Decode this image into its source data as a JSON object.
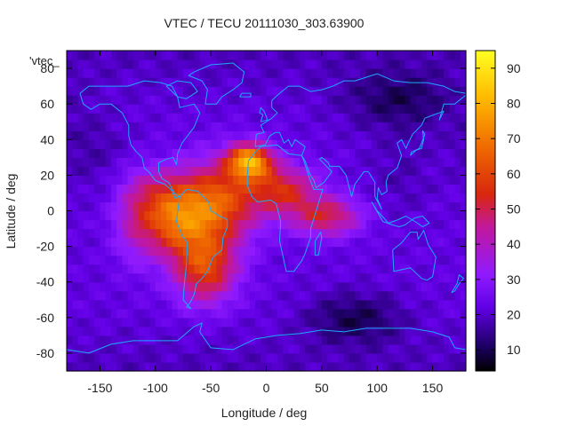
{
  "chart_data": {
    "type": "heatmap",
    "title": "VTEC / TECU 20111030_303.63900",
    "series_label": "'vtec_",
    "xlabel": "Longitude / deg",
    "ylabel": "Latitude / deg",
    "xlim": [
      -180,
      180
    ],
    "ylim": [
      -90,
      90
    ],
    "x_ticks": [
      -150,
      -100,
      -50,
      0,
      50,
      100,
      150
    ],
    "y_ticks": [
      -80,
      -60,
      -40,
      -20,
      0,
      20,
      40,
      60,
      80
    ],
    "colorbar": {
      "min": 4,
      "max": 95,
      "ticks": [
        10,
        20,
        30,
        40,
        50,
        60,
        70,
        80,
        90
      ]
    },
    "grid_resolution_deg": [
      5,
      5
    ],
    "enhancements": [
      {
        "lon": -15,
        "lat": 28,
        "sx": 14,
        "sy": 7,
        "amp": 52
      },
      {
        "lon": -45,
        "lat": 5,
        "sx": 26,
        "sy": 16,
        "amp": 40
      },
      {
        "lon": -85,
        "lat": -5,
        "sx": 22,
        "sy": 14,
        "amp": 36
      },
      {
        "lon": -55,
        "lat": -32,
        "sx": 20,
        "sy": 14,
        "amp": 36
      },
      {
        "lon": 15,
        "lat": 12,
        "sx": 22,
        "sy": 10,
        "amp": 30
      },
      {
        "lon": 55,
        "lat": -3,
        "sx": 22,
        "sy": 8,
        "amp": 28
      },
      {
        "lon": -120,
        "lat": -5,
        "sx": 14,
        "sy": 18,
        "amp": 12
      },
      {
        "lon": -100,
        "lat": 12,
        "sx": 18,
        "sy": 10,
        "amp": 10
      }
    ],
    "base_vtec": 22,
    "depletions": [
      {
        "lon": 120,
        "lat": 62,
        "sx": 35,
        "sy": 12,
        "amp": -11
      },
      {
        "lon": 80,
        "lat": -60,
        "sx": 30,
        "sy": 10,
        "amp": -12
      },
      {
        "lon": -160,
        "lat": 35,
        "sx": 25,
        "sy": 15,
        "amp": -5
      },
      {
        "lon": 120,
        "lat": 20,
        "sx": 20,
        "sy": 15,
        "amp": -4
      }
    ],
    "colormap": [
      {
        "v": 0.0,
        "color": "#000000"
      },
      {
        "v": 0.08,
        "color": "#1e0066"
      },
      {
        "v": 0.2,
        "color": "#6200e6"
      },
      {
        "v": 0.3,
        "color": "#8f1aff"
      },
      {
        "v": 0.45,
        "color": "#c2189b"
      },
      {
        "v": 0.55,
        "color": "#d8260f"
      },
      {
        "v": 0.7,
        "color": "#f06b00"
      },
      {
        "v": 0.85,
        "color": "#ffb800"
      },
      {
        "v": 1.0,
        "color": "#ffff22"
      }
    ],
    "coastline_color": "#1ea8ff",
    "continents": {
      "north_america": [
        [
          -168,
          66
        ],
        [
          -160,
          70
        ],
        [
          -140,
          70
        ],
        [
          -125,
          70
        ],
        [
          -110,
          73
        ],
        [
          -95,
          72
        ],
        [
          -85,
          70
        ],
        [
          -80,
          64
        ],
        [
          -78,
          58
        ],
        [
          -65,
          60
        ],
        [
          -60,
          55
        ],
        [
          -65,
          47
        ],
        [
          -70,
          43
        ],
        [
          -76,
          38
        ],
        [
          -80,
          32
        ],
        [
          -81,
          26
        ],
        [
          -84,
          30
        ],
        [
          -90,
          29
        ],
        [
          -97,
          27
        ],
        [
          -97,
          22
        ],
        [
          -94,
          18
        ],
        [
          -88,
          16
        ],
        [
          -83,
          10
        ],
        [
          -79,
          8
        ],
        [
          -82,
          7
        ],
        [
          -86,
          12
        ],
        [
          -92,
          15
        ],
        [
          -100,
          17
        ],
        [
          -106,
          22
        ],
        [
          -110,
          24
        ],
        [
          -112,
          30
        ],
        [
          -117,
          33
        ],
        [
          -122,
          37
        ],
        [
          -124,
          42
        ],
        [
          -124,
          48
        ],
        [
          -130,
          55
        ],
        [
          -140,
          60
        ],
        [
          -150,
          60
        ],
        [
          -158,
          57
        ],
        [
          -165,
          60
        ],
        [
          -168,
          66
        ]
      ],
      "greenland": [
        [
          -55,
          60
        ],
        [
          -45,
          60
        ],
        [
          -40,
          64
        ],
        [
          -30,
          68
        ],
        [
          -22,
          72
        ],
        [
          -20,
          78
        ],
        [
          -30,
          83
        ],
        [
          -50,
          82
        ],
        [
          -65,
          78
        ],
        [
          -70,
          76
        ],
        [
          -58,
          73
        ],
        [
          -53,
          68
        ],
        [
          -55,
          60
        ]
      ],
      "south_america": [
        [
          -78,
          8
        ],
        [
          -72,
          12
        ],
        [
          -62,
          11
        ],
        [
          -52,
          5
        ],
        [
          -50,
          0
        ],
        [
          -42,
          -3
        ],
        [
          -35,
          -5
        ],
        [
          -35,
          -9
        ],
        [
          -39,
          -15
        ],
        [
          -40,
          -22
        ],
        [
          -48,
          -26
        ],
        [
          -53,
          -34
        ],
        [
          -58,
          -38
        ],
        [
          -63,
          -41
        ],
        [
          -65,
          -47
        ],
        [
          -69,
          -52
        ],
        [
          -72,
          -54
        ],
        [
          -68,
          -55
        ],
        [
          -75,
          -50
        ],
        [
          -74,
          -42
        ],
        [
          -72,
          -30
        ],
        [
          -71,
          -18
        ],
        [
          -76,
          -14
        ],
        [
          -81,
          -6
        ],
        [
          -80,
          -1
        ],
        [
          -78,
          8
        ]
      ],
      "africa": [
        [
          -17,
          21
        ],
        [
          -16,
          28
        ],
        [
          -10,
          33
        ],
        [
          -5,
          36
        ],
        [
          10,
          37
        ],
        [
          20,
          32
        ],
        [
          32,
          31
        ],
        [
          34,
          28
        ],
        [
          38,
          20
        ],
        [
          43,
          12
        ],
        [
          51,
          12
        ],
        [
          44,
          -2
        ],
        [
          40,
          -10
        ],
        [
          40,
          -15
        ],
        [
          35,
          -24
        ],
        [
          32,
          -28
        ],
        [
          25,
          -34
        ],
        [
          18,
          -34
        ],
        [
          12,
          -17
        ],
        [
          13,
          -6
        ],
        [
          9,
          4
        ],
        [
          4,
          6
        ],
        [
          -8,
          5
        ],
        [
          -13,
          8
        ],
        [
          -17,
          14
        ],
        [
          -17,
          21
        ]
      ],
      "eurasia": [
        [
          -10,
          36
        ],
        [
          -9,
          43
        ],
        [
          -2,
          44
        ],
        [
          -5,
          48
        ],
        [
          5,
          52
        ],
        [
          10,
          55
        ],
        [
          5,
          58
        ],
        [
          5,
          62
        ],
        [
          12,
          66
        ],
        [
          20,
          70
        ],
        [
          30,
          70
        ],
        [
          40,
          67
        ],
        [
          50,
          68
        ],
        [
          60,
          70
        ],
        [
          70,
          73
        ],
        [
          80,
          73
        ],
        [
          100,
          77
        ],
        [
          115,
          73
        ],
        [
          130,
          72
        ],
        [
          145,
          72
        ],
        [
          160,
          70
        ],
        [
          170,
          67
        ],
        [
          180,
          66
        ],
        [
          180,
          65
        ],
        [
          170,
          60
        ],
        [
          160,
          60
        ],
        [
          156,
          51
        ],
        [
          160,
          56
        ],
        [
          143,
          52
        ],
        [
          140,
          48
        ],
        [
          132,
          43
        ],
        [
          128,
          38
        ],
        [
          126,
          35
        ],
        [
          122,
          40
        ],
        [
          118,
          38
        ],
        [
          122,
          31
        ],
        [
          118,
          24
        ],
        [
          110,
          20
        ],
        [
          108,
          16
        ],
        [
          109,
          11
        ],
        [
          104,
          9
        ],
        [
          101,
          13
        ],
        [
          100,
          7
        ],
        [
          104,
          1
        ],
        [
          98,
          8
        ],
        [
          98,
          16
        ],
        [
          92,
          22
        ],
        [
          88,
          22
        ],
        [
          80,
          15
        ],
        [
          77,
          8
        ],
        [
          72,
          20
        ],
        [
          66,
          25
        ],
        [
          57,
          25
        ],
        [
          56,
          27
        ],
        [
          50,
          30
        ],
        [
          48,
          29
        ],
        [
          56,
          24
        ],
        [
          59,
          22
        ],
        [
          52,
          16
        ],
        [
          45,
          13
        ],
        [
          43,
          17
        ],
        [
          39,
          21
        ],
        [
          35,
          28
        ],
        [
          32,
          31
        ],
        [
          35,
          36
        ],
        [
          26,
          40
        ],
        [
          23,
          36
        ],
        [
          20,
          40
        ],
        [
          16,
          38
        ],
        [
          12,
          44
        ],
        [
          8,
          44
        ],
        [
          3,
          42
        ],
        [
          -1,
          37
        ],
        [
          -10,
          36
        ]
      ],
      "australia": [
        [
          114,
          -22
        ],
        [
          122,
          -18
        ],
        [
          130,
          -12
        ],
        [
          136,
          -12
        ],
        [
          137,
          -16
        ],
        [
          142,
          -11
        ],
        [
          146,
          -19
        ],
        [
          153,
          -26
        ],
        [
          150,
          -37
        ],
        [
          145,
          -39
        ],
        [
          140,
          -38
        ],
        [
          135,
          -35
        ],
        [
          130,
          -32
        ],
        [
          115,
          -34
        ],
        [
          114,
          -22
        ]
      ],
      "antarctica": [
        [
          -180,
          -78
        ],
        [
          -160,
          -80
        ],
        [
          -140,
          -75
        ],
        [
          -120,
          -73
        ],
        [
          -100,
          -73
        ],
        [
          -80,
          -73
        ],
        [
          -65,
          -65
        ],
        [
          -58,
          -63
        ],
        [
          -60,
          -68
        ],
        [
          -50,
          -77
        ],
        [
          -30,
          -78
        ],
        [
          -10,
          -72
        ],
        [
          10,
          -70
        ],
        [
          30,
          -69
        ],
        [
          50,
          -67
        ],
        [
          70,
          -68
        ],
        [
          90,
          -66
        ],
        [
          110,
          -66
        ],
        [
          130,
          -66
        ],
        [
          150,
          -68
        ],
        [
          165,
          -71
        ],
        [
          170,
          -77
        ],
        [
          180,
          -78
        ]
      ],
      "british_isles": [
        [
          -5,
          50
        ],
        [
          1,
          51
        ],
        [
          0,
          53
        ],
        [
          -2,
          56
        ],
        [
          -5,
          58
        ],
        [
          -6,
          55
        ],
        [
          -3,
          54
        ],
        [
          -5,
          50
        ]
      ],
      "japan": [
        [
          130,
          31
        ],
        [
          135,
          34
        ],
        [
          140,
          35
        ],
        [
          142,
          40
        ],
        [
          141,
          45
        ],
        [
          143,
          43
        ],
        [
          140,
          38
        ],
        [
          138,
          35
        ],
        [
          131,
          33
        ],
        [
          130,
          31
        ]
      ],
      "madagascar": [
        [
          44,
          -25
        ],
        [
          47,
          -25
        ],
        [
          50,
          -15
        ],
        [
          49,
          -12
        ],
        [
          44,
          -17
        ],
        [
          44,
          -25
        ]
      ],
      "new_zealand": [
        [
          167,
          -46
        ],
        [
          172,
          -41
        ],
        [
          174,
          -36
        ],
        [
          178,
          -38
        ],
        [
          174,
          -41
        ],
        [
          170,
          -45
        ],
        [
          167,
          -46
        ]
      ],
      "indonesia": [
        [
          95,
          5
        ],
        [
          105,
          -6
        ],
        [
          114,
          -8
        ],
        [
          120,
          -9
        ],
        [
          125,
          -8
        ],
        [
          134,
          -4
        ],
        [
          141,
          -3
        ],
        [
          147,
          -7
        ],
        [
          141,
          -9
        ],
        [
          134,
          -6
        ],
        [
          126,
          -3
        ],
        [
          119,
          -5
        ],
        [
          110,
          -7
        ],
        [
          106,
          -4
        ],
        [
          100,
          0
        ],
        [
          95,
          5
        ]
      ],
      "baffin": [
        [
          -80,
          64
        ],
        [
          -72,
          63
        ],
        [
          -62,
          67
        ],
        [
          -68,
          72
        ],
        [
          -80,
          73
        ],
        [
          -90,
          70
        ],
        [
          -80,
          64
        ]
      ],
      "iceland": [
        [
          -24,
          64
        ],
        [
          -14,
          64
        ],
        [
          -14,
          66
        ],
        [
          -22,
          66
        ],
        [
          -24,
          64
        ]
      ]
    }
  }
}
